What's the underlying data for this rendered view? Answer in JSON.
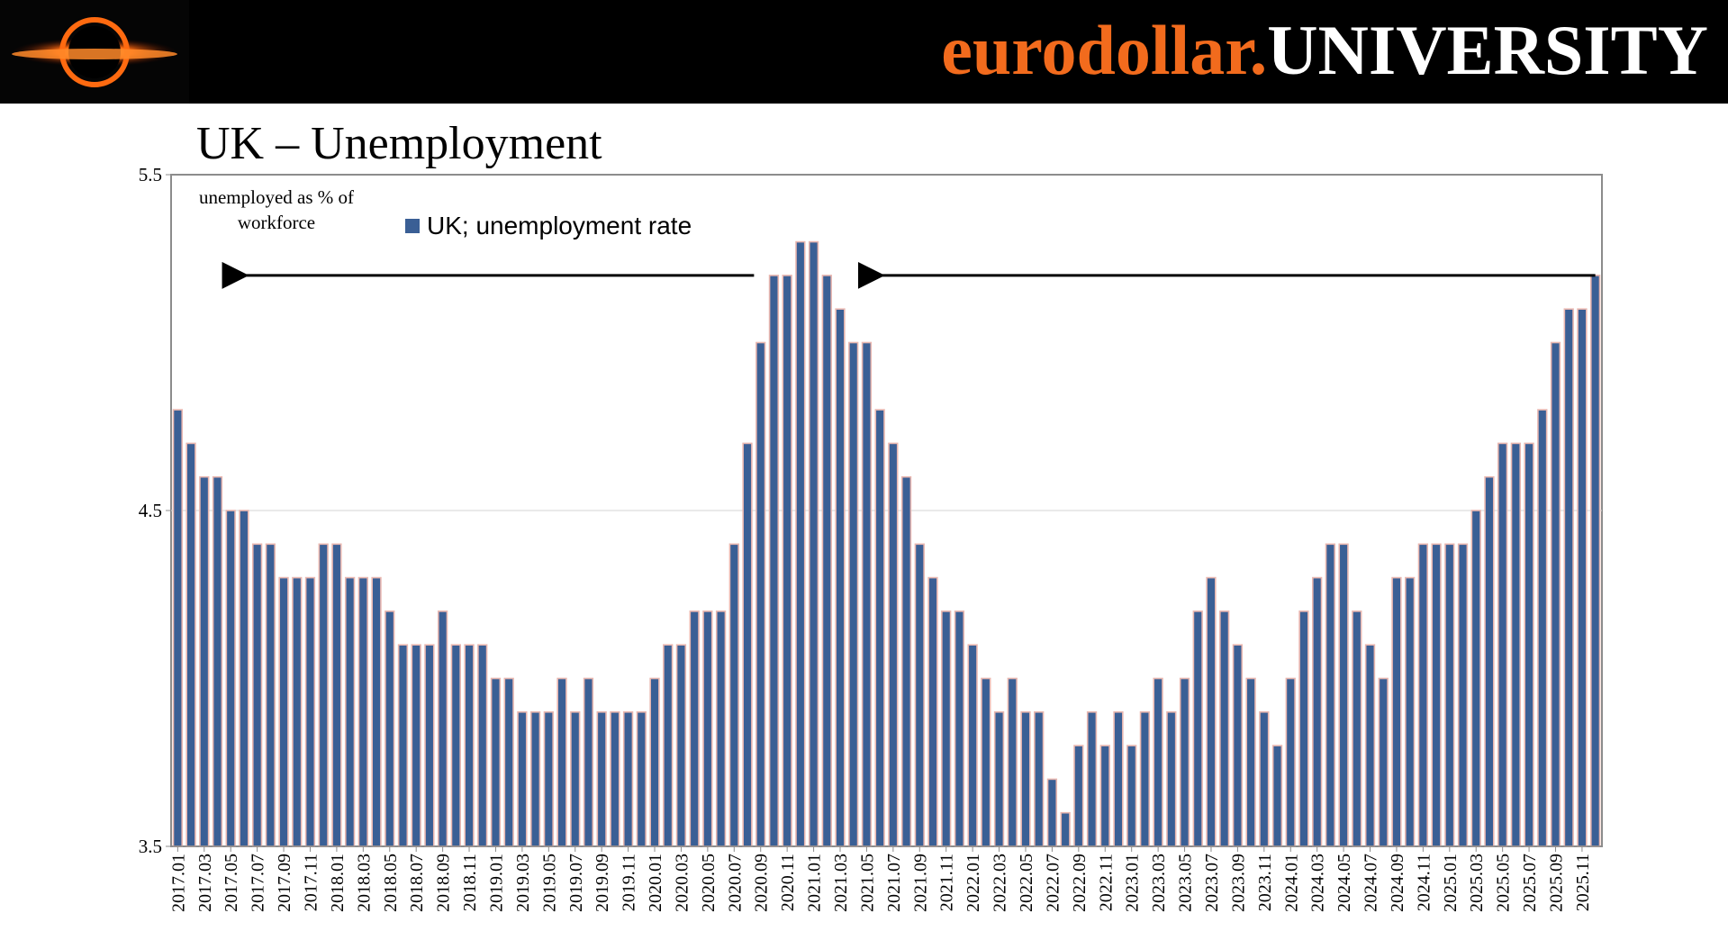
{
  "header": {
    "brand_part1": "eurodollar.",
    "brand_part2": "UNIVERSITY",
    "brand_color": "#f26b1d"
  },
  "slide_title": "UK – Unemployment",
  "chart_data": {
    "type": "bar",
    "title": "",
    "ylabel": "unemployed as % of workforce",
    "ylabel_lines": [
      "unemployed as % of",
      "workforce"
    ],
    "xlabel": "",
    "ylim": [
      3.5,
      5.5
    ],
    "yticks": [
      "3.5",
      "4.5",
      "5.5"
    ],
    "grid": true,
    "legend_position": "top-left",
    "series": [
      {
        "name": "UK; unemployment rate",
        "color": "#3a5f95",
        "values": [
          4.8,
          4.7,
          4.6,
          4.6,
          4.5,
          4.5,
          4.4,
          4.4,
          4.3,
          4.3,
          4.3,
          4.4,
          4.4,
          4.3,
          4.3,
          4.3,
          4.2,
          4.1,
          4.1,
          4.1,
          4.2,
          4.1,
          4.1,
          4.1,
          4.0,
          4.0,
          3.9,
          3.9,
          3.9,
          4.0,
          3.9,
          4.0,
          3.9,
          3.9,
          3.9,
          3.9,
          4.0,
          4.1,
          4.1,
          4.2,
          4.2,
          4.2,
          4.4,
          4.7,
          5.0,
          5.2,
          5.2,
          5.3,
          5.3,
          5.2,
          5.1,
          5.0,
          5.0,
          4.8,
          4.7,
          4.6,
          4.4,
          4.3,
          4.2,
          4.2,
          4.1,
          4.0,
          3.9,
          4.0,
          3.9,
          3.9,
          3.7,
          3.6,
          3.8,
          3.9,
          3.8,
          3.9,
          3.8,
          3.9,
          4.0,
          3.9,
          4.0,
          4.2,
          4.3,
          4.2,
          4.1,
          4.0,
          3.9,
          3.8,
          4.0,
          4.2,
          4.3,
          4.4,
          4.4,
          4.2,
          4.1,
          4.0,
          4.3,
          4.3,
          4.4,
          4.4,
          4.4,
          4.4,
          4.5,
          4.6,
          4.7,
          4.7,
          4.7,
          4.8,
          5.0,
          5.1,
          5.1,
          5.2
        ]
      }
    ],
    "x_labels": [
      "2017.01",
      "2017.03",
      "2017.05",
      "2017.07",
      "2017.09",
      "2017.11",
      "2018.01",
      "2018.03",
      "2018.05",
      "2018.07",
      "2018.09",
      "2018.11",
      "2019.01",
      "2019.03",
      "2019.05",
      "2019.07",
      "2019.09",
      "2019.11",
      "2020.01",
      "2020.03",
      "2020.05",
      "2020.07",
      "2020.09",
      "2020.11",
      "2021.01",
      "2021.03",
      "2021.05",
      "2021.07",
      "2021.09",
      "2021.11",
      "2022.01",
      "2022.03",
      "2022.05",
      "2022.07",
      "2022.09",
      "2022.11",
      "2023.01",
      "2023.03",
      "2023.05",
      "2023.07",
      "2023.09",
      "2023.11",
      "2024.01",
      "2024.03",
      "2024.05",
      "2024.07",
      "2024.09",
      "2024.11",
      "2025.01",
      "2025.03",
      "2025.05",
      "2025.07",
      "2025.09",
      "2025.11"
    ],
    "annotations": [
      {
        "type": "arrow",
        "direction": "left",
        "from": "2020.09",
        "to": "2017.05",
        "level": 5.2
      },
      {
        "type": "arrow",
        "direction": "left",
        "from": "2025.12",
        "to": "2021.05",
        "level": 5.2
      }
    ]
  }
}
